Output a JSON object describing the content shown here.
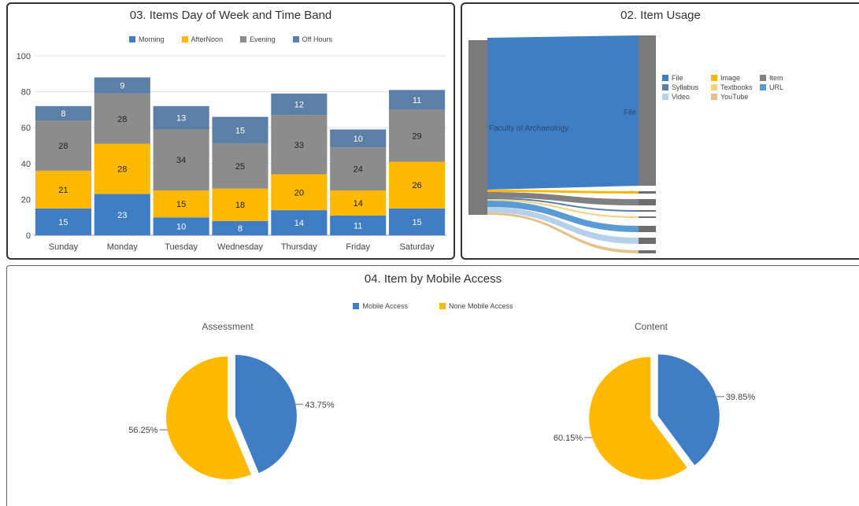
{
  "bar_panel": {
    "title": "03. Items Day of Week and Time Band"
  },
  "sankey_panel": {
    "title": "02. Item Usage",
    "source_label": "Faculty of Archaeology",
    "target_label": "File",
    "legend": [
      {
        "label": "File",
        "color": "#3f7dc4"
      },
      {
        "label": "Image",
        "color": "#ffb900"
      },
      {
        "label": "Item",
        "color": "#808080"
      },
      {
        "label": "Syllabus",
        "color": "#5b7fa6"
      },
      {
        "label": "Textbooks",
        "color": "#f5d07a"
      },
      {
        "label": "URL",
        "color": "#5a9bd5"
      },
      {
        "label": "Video",
        "color": "#b7d0ea"
      },
      {
        "label": "YouTube",
        "color": "#e0c48c"
      }
    ]
  },
  "pie_panel": {
    "title": "04. Item by Mobile Access"
  },
  "chart_data": [
    {
      "type": "bar",
      "stacked": true,
      "title": "03. Items Day of Week and Time Band",
      "categories": [
        "Sunday",
        "Monday",
        "Tuesday",
        "Wednesday",
        "Thursday",
        "Friday",
        "Saturday"
      ],
      "series": [
        {
          "name": "Morning",
          "color": "#3f7dc4",
          "values": [
            15,
            23,
            10,
            8,
            14,
            11,
            15
          ]
        },
        {
          "name": "AfterNoon",
          "color": "#ffb900",
          "values": [
            21,
            28,
            15,
            18,
            20,
            14,
            26
          ]
        },
        {
          "name": "Evening",
          "color": "#8c8c8c",
          "values": [
            28,
            28,
            34,
            25,
            33,
            24,
            29
          ]
        },
        {
          "name": "Off Hours",
          "color": "#5b7fa6",
          "values": [
            8,
            9,
            13,
            15,
            12,
            10,
            11
          ]
        }
      ],
      "yticks": [
        0,
        20,
        40,
        60,
        80,
        100
      ],
      "ylim": [
        0,
        100
      ],
      "legend_position": "top-center",
      "grid": true
    },
    {
      "type": "pie",
      "title": "Assessment",
      "legend_title": "04. Item by Mobile Access",
      "labels": [
        "Mobile Access",
        "None Mobile Access"
      ],
      "values": [
        43.75,
        56.25
      ],
      "value_labels": [
        "43.75%",
        "56.25%"
      ],
      "colors": [
        "#3f7dc4",
        "#ffb900"
      ],
      "legend_position": "top-center"
    },
    {
      "type": "pie",
      "title": "Content",
      "labels": [
        "Mobile Access",
        "None Mobile Access"
      ],
      "values": [
        39.85,
        60.15
      ],
      "value_labels": [
        "39.85%",
        "60.15%"
      ],
      "colors": [
        "#3f7dc4",
        "#ffb900"
      ],
      "legend_position": "top-center"
    }
  ]
}
